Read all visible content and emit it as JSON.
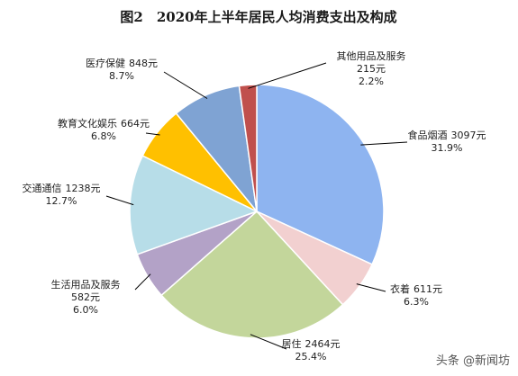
{
  "chart_data": {
    "type": "pie",
    "title": "图2　2020年上半年居民人均消费支出及构成",
    "slices": [
      {
        "name": "食品烟酒",
        "value": 3097,
        "value_text": "3097元",
        "percent": 31.9,
        "percent_text": "31.9%",
        "color": "#8eb4f0"
      },
      {
        "name": "衣着",
        "value": 611,
        "value_text": "611元",
        "percent": 6.3,
        "percent_text": "6.3%",
        "color": "#f2d0d0"
      },
      {
        "name": "居住",
        "value": 2464,
        "value_text": "2464元",
        "percent": 25.4,
        "percent_text": "25.4%",
        "color": "#c3d69b"
      },
      {
        "name": "生活用品及服务",
        "value": 582,
        "value_text": "582元",
        "percent": 6.0,
        "percent_text": "6.0%",
        "color": "#b3a2c7"
      },
      {
        "name": "交通通信",
        "value": 1238,
        "value_text": "1238元",
        "percent": 12.7,
        "percent_text": "12.7%",
        "color": "#b7dde8"
      },
      {
        "name": "教育文化娱乐",
        "value": 664,
        "value_text": "664元",
        "percent": 6.8,
        "percent_text": "6.8%",
        "color": "#ffc000"
      },
      {
        "name": "医疗保健",
        "value": 848,
        "value_text": "848元",
        "percent": 8.7,
        "percent_text": "8.7%",
        "color": "#7fa3d3"
      },
      {
        "name": "其他用品及服务",
        "value": 215,
        "value_text": "215元",
        "percent": 2.2,
        "percent_text": "2.2%",
        "color": "#c0504d"
      }
    ]
  },
  "watermark": "头条 @新闻坊"
}
